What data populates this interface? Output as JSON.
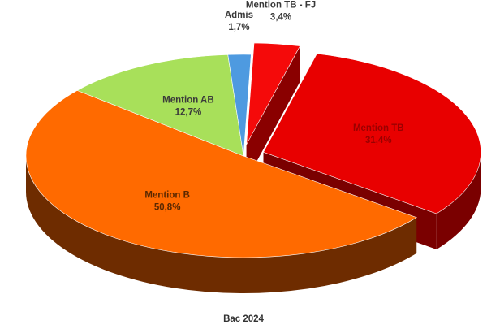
{
  "chart_data": {
    "type": "pie",
    "title": "Bac 2024",
    "slices": [
      {
        "name": "Mention TB - FJ",
        "value": 3.4,
        "value_label": "3,4%",
        "top_color": "#f50a0a",
        "side_color": "#8a0000",
        "label_color": "#3a3a3a",
        "explode": true
      },
      {
        "name": "Mention TB",
        "value": 31.4,
        "value_label": "31,4%",
        "top_color": "#e80000",
        "side_color": "#7a0000",
        "label_color": "#9a0000",
        "explode": true
      },
      {
        "name": "Mention B",
        "value": 50.8,
        "value_label": "50,8%",
        "top_color": "#ff6a00",
        "side_color": "#6e2c00",
        "label_color": "#5a2800",
        "explode": false
      },
      {
        "name": "Mention AB",
        "value": 12.7,
        "value_label": "12,7%",
        "top_color": "#a8e05a",
        "side_color": "#4f6a2a",
        "label_color": "#3a3a3a",
        "explode": false
      },
      {
        "name": "Admis",
        "value": 1.7,
        "value_label": "1,7%",
        "top_color": "#4e9ae0",
        "side_color": "#1f4f80",
        "label_color": "#3a3a3a",
        "explode": false
      }
    ]
  }
}
